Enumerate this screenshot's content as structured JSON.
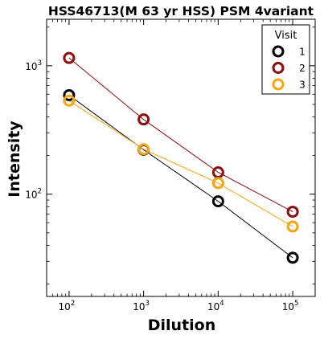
{
  "chart_data": {
    "type": "line",
    "title": "HSS46713(M 63 yr HSS) PSM 4variant",
    "xlabel": "Dilution",
    "ylabel": "Intensity",
    "xscale": "log",
    "yscale": "log",
    "xlim": [
      50,
      200000
    ],
    "ylim": [
      16,
      2300
    ],
    "x": [
      100,
      1000,
      10000,
      100000
    ],
    "x_ticks": [
      {
        "value": 100,
        "base": "10",
        "exp": "2"
      },
      {
        "value": 1000,
        "base": "10",
        "exp": "3"
      },
      {
        "value": 10000,
        "base": "10",
        "exp": "4"
      },
      {
        "value": 100000,
        "base": "10",
        "exp": "5"
      }
    ],
    "y_ticks": [
      {
        "value": 100,
        "base": "10",
        "exp": "2"
      },
      {
        "value": 1000,
        "base": "10",
        "exp": "3"
      }
    ],
    "grid": false,
    "legend": {
      "title": "Visit",
      "placement": "top-right"
    },
    "series": [
      {
        "name": "1",
        "color": "#000000",
        "values": [
          590,
          222,
          88,
          32
        ]
      },
      {
        "name": "2",
        "color": "#8b0d0d",
        "values": [
          1150,
          382,
          148,
          73
        ]
      },
      {
        "name": "3",
        "color": "#f5a510",
        "values": [
          535,
          224,
          122,
          56
        ]
      }
    ]
  }
}
